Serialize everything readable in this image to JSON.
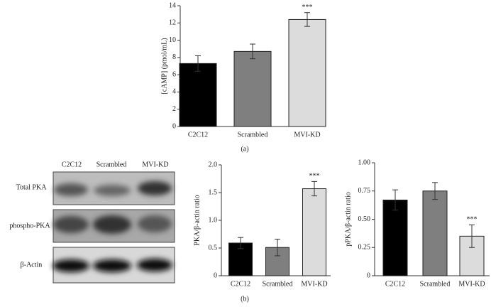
{
  "chart_data": [
    {
      "type": "bar",
      "y_label": "[cAMP] (pmol/mL)",
      "categories": [
        "C2C12",
        "Scrambled",
        "MVI-KD"
      ],
      "values": [
        7.3,
        8.7,
        12.4
      ],
      "errors": [
        0.9,
        0.85,
        0.8
      ],
      "colors": [
        "#000000",
        "#7f7f7f",
        "#dcdcdc"
      ],
      "ylim": [
        0,
        14
      ],
      "yticks": [
        0,
        2,
        4,
        6,
        8,
        10,
        12,
        14
      ],
      "annotation": {
        "text": "***",
        "category": "MVI-KD"
      }
    },
    {
      "type": "bar",
      "y_label": "PKA/β-actin ratio",
      "categories": [
        "C2C12",
        "Scrambled",
        "MVI-KD"
      ],
      "values": [
        0.59,
        0.51,
        1.57
      ],
      "errors": [
        0.1,
        0.15,
        0.13
      ],
      "colors": [
        "#000000",
        "#7f7f7f",
        "#dcdcdc"
      ],
      "ylim": [
        0,
        2
      ],
      "yticks": [
        0,
        0.5,
        {
          "value": 1,
          "label": "1.0"
        },
        1.5,
        {
          "value": 2,
          "label": "2.0"
        }
      ],
      "annotation": {
        "text": "***",
        "category": "MVI-KD"
      }
    },
    {
      "type": "bar",
      "y_label": "pPKA/β-actin ratio",
      "categories": [
        "C2C12",
        "Scrambled",
        "MVI-KD"
      ],
      "values": [
        0.67,
        0.75,
        0.35
      ],
      "errors": [
        0.09,
        0.075,
        0.1
      ],
      "colors": [
        "#000000",
        "#7f7f7f",
        "#dcdcdc"
      ],
      "ylim": [
        0,
        1
      ],
      "yticks": [
        0,
        0.25,
        {
          "value": 0.5,
          "label": "0.50"
        },
        0.75,
        {
          "value": 1,
          "label": "1.00"
        }
      ],
      "annotation": {
        "text": "***",
        "category": "MVI-KD"
      }
    }
  ],
  "blot": {
    "columns": [
      "C2C12",
      "Scrambled",
      "MVI-KD"
    ],
    "rows": [
      "Total PKA",
      "phospho-PKA",
      "β-Actin"
    ]
  },
  "panel_labels": [
    "(a)",
    "(b)"
  ]
}
